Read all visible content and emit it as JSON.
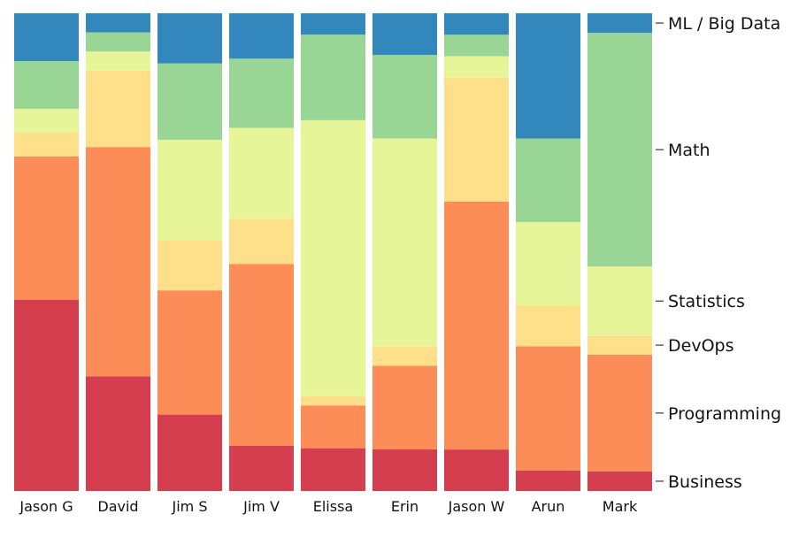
{
  "chart_data": {
    "type": "bar",
    "stacked": true,
    "normalized": true,
    "categories": [
      "Jason G",
      "David",
      "Jim S",
      "Jim V",
      "Elissa",
      "Erin",
      "Jason W",
      "Arun",
      "Mark"
    ],
    "series": [
      {
        "name": "Business",
        "color": "#d53e4f",
        "values": [
          0.4,
          0.24,
          0.16,
          0.095,
          0.09,
          0.087,
          0.087,
          0.043,
          0.041
        ]
      },
      {
        "name": "Programming",
        "color": "#fc8d59",
        "values": [
          0.3,
          0.48,
          0.26,
          0.38,
          0.09,
          0.175,
          0.52,
          0.26,
          0.245
        ]
      },
      {
        "name": "DevOps",
        "color": "#fee08b",
        "values": [
          0.05,
          0.16,
          0.105,
          0.095,
          0.02,
          0.04,
          0.26,
          0.085,
          0.04
        ]
      },
      {
        "name": "Statistics",
        "color": "#e6f598",
        "values": [
          0.05,
          0.04,
          0.21,
          0.19,
          0.58,
          0.435,
          0.045,
          0.175,
          0.145
        ]
      },
      {
        "name": "Math",
        "color": "#99d594",
        "values": [
          0.1,
          0.04,
          0.16,
          0.145,
          0.18,
          0.175,
          0.045,
          0.175,
          0.49
        ]
      },
      {
        "name": "ML / Big Data",
        "color": "#3288bd",
        "values": [
          0.1,
          0.04,
          0.105,
          0.095,
          0.045,
          0.087,
          0.045,
          0.262,
          0.041
        ]
      }
    ],
    "label_column_index": 8,
    "ylim": [
      0,
      1
    ],
    "grid": false,
    "legend": "right"
  }
}
